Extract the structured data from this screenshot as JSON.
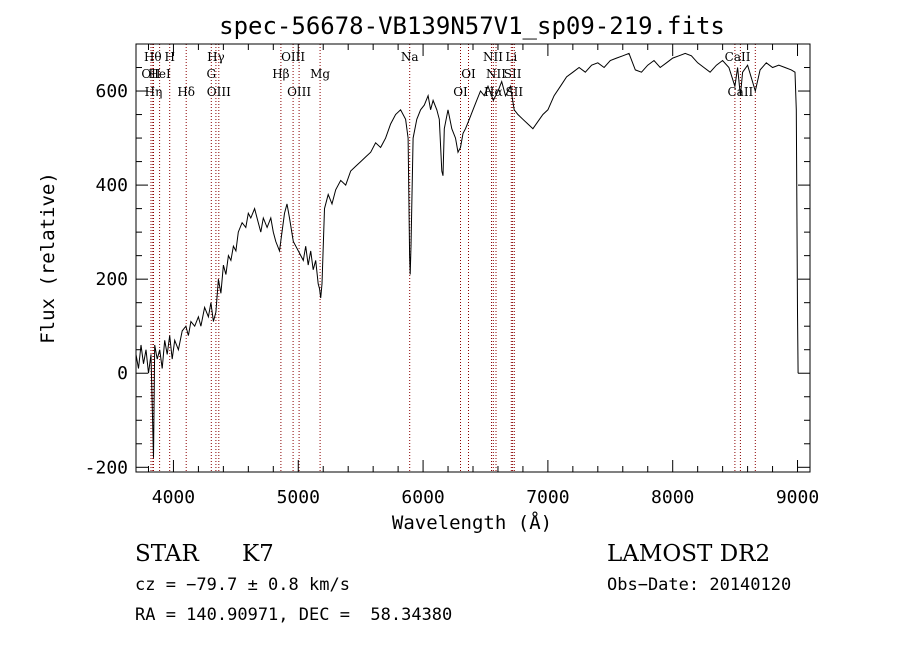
{
  "chart_data": {
    "type": "line",
    "title": "spec-56678-VB139N57V1_sp09-219.fits",
    "xlabel": "Wavelength (Å)",
    "ylabel": "Flux (relative)",
    "xlim": [
      3700,
      9100
    ],
    "ylim": [
      -210,
      700
    ],
    "x_ticks": [
      4000,
      5000,
      6000,
      7000,
      8000,
      9000
    ],
    "y_ticks": [
      -200,
      0,
      200,
      400,
      600
    ],
    "grid": false,
    "series": [
      {
        "points": [
          [
            3700,
            40
          ],
          [
            3720,
            10
          ],
          [
            3740,
            60
          ],
          [
            3760,
            20
          ],
          [
            3780,
            50
          ],
          [
            3800,
            0
          ],
          [
            3820,
            40
          ],
          [
            3840,
            -180
          ],
          [
            3850,
            60
          ],
          [
            3870,
            30
          ],
          [
            3890,
            50
          ],
          [
            3910,
            10
          ],
          [
            3930,
            70
          ],
          [
            3950,
            40
          ],
          [
            3970,
            80
          ],
          [
            3990,
            30
          ],
          [
            4010,
            70
          ],
          [
            4040,
            50
          ],
          [
            4070,
            90
          ],
          [
            4100,
            100
          ],
          [
            4120,
            80
          ],
          [
            4140,
            110
          ],
          [
            4170,
            100
          ],
          [
            4200,
            120
          ],
          [
            4220,
            100
          ],
          [
            4250,
            140
          ],
          [
            4280,
            120
          ],
          [
            4300,
            150
          ],
          [
            4320,
            110
          ],
          [
            4340,
            130
          ],
          [
            4360,
            200
          ],
          [
            4380,
            170
          ],
          [
            4400,
            230
          ],
          [
            4420,
            210
          ],
          [
            4440,
            250
          ],
          [
            4460,
            240
          ],
          [
            4480,
            270
          ],
          [
            4500,
            260
          ],
          [
            4520,
            300
          ],
          [
            4550,
            320
          ],
          [
            4580,
            310
          ],
          [
            4600,
            340
          ],
          [
            4620,
            330
          ],
          [
            4650,
            350
          ],
          [
            4680,
            320
          ],
          [
            4700,
            300
          ],
          [
            4720,
            330
          ],
          [
            4750,
            310
          ],
          [
            4780,
            330
          ],
          [
            4800,
            300
          ],
          [
            4820,
            280
          ],
          [
            4850,
            260
          ],
          [
            4870,
            300
          ],
          [
            4890,
            340
          ],
          [
            4910,
            360
          ],
          [
            4930,
            330
          ],
          [
            4960,
            280
          ],
          [
            4980,
            270
          ],
          [
            5000,
            260
          ],
          [
            5020,
            250
          ],
          [
            5040,
            240
          ],
          [
            5060,
            270
          ],
          [
            5080,
            230
          ],
          [
            5100,
            260
          ],
          [
            5120,
            220
          ],
          [
            5140,
            240
          ],
          [
            5160,
            190
          ],
          [
            5170,
            180
          ],
          [
            5180,
            160
          ],
          [
            5190,
            190
          ],
          [
            5210,
            350
          ],
          [
            5240,
            380
          ],
          [
            5270,
            360
          ],
          [
            5300,
            390
          ],
          [
            5340,
            410
          ],
          [
            5380,
            400
          ],
          [
            5420,
            430
          ],
          [
            5460,
            440
          ],
          [
            5500,
            450
          ],
          [
            5540,
            460
          ],
          [
            5580,
            470
          ],
          [
            5620,
            490
          ],
          [
            5660,
            480
          ],
          [
            5700,
            500
          ],
          [
            5740,
            530
          ],
          [
            5780,
            550
          ],
          [
            5820,
            560
          ],
          [
            5860,
            540
          ],
          [
            5880,
            500
          ],
          [
            5892,
            250
          ],
          [
            5897,
            210
          ],
          [
            5903,
            270
          ],
          [
            5920,
            500
          ],
          [
            5950,
            540
          ],
          [
            5980,
            560
          ],
          [
            6010,
            570
          ],
          [
            6040,
            590
          ],
          [
            6060,
            560
          ],
          [
            6080,
            580
          ],
          [
            6110,
            560
          ],
          [
            6130,
            540
          ],
          [
            6150,
            430
          ],
          [
            6160,
            420
          ],
          [
            6170,
            520
          ],
          [
            6200,
            560
          ],
          [
            6230,
            520
          ],
          [
            6260,
            500
          ],
          [
            6280,
            470
          ],
          [
            6300,
            480
          ],
          [
            6320,
            510
          ],
          [
            6340,
            520
          ],
          [
            6370,
            540
          ],
          [
            6400,
            560
          ],
          [
            6430,
            580
          ],
          [
            6460,
            600
          ],
          [
            6490,
            590
          ],
          [
            6520,
            610
          ],
          [
            6563,
            580
          ],
          [
            6600,
            600
          ],
          [
            6630,
            620
          ],
          [
            6660,
            590
          ],
          [
            6700,
            610
          ],
          [
            6730,
            560
          ],
          [
            6760,
            550
          ],
          [
            6800,
            540
          ],
          [
            6840,
            530
          ],
          [
            6880,
            520
          ],
          [
            6920,
            535
          ],
          [
            6960,
            550
          ],
          [
            7000,
            560
          ],
          [
            7050,
            590
          ],
          [
            7100,
            610
          ],
          [
            7150,
            630
          ],
          [
            7200,
            640
          ],
          [
            7250,
            650
          ],
          [
            7300,
            640
          ],
          [
            7350,
            655
          ],
          [
            7400,
            660
          ],
          [
            7450,
            650
          ],
          [
            7500,
            665
          ],
          [
            7550,
            670
          ],
          [
            7600,
            675
          ],
          [
            7650,
            680
          ],
          [
            7700,
            645
          ],
          [
            7750,
            640
          ],
          [
            7800,
            655
          ],
          [
            7850,
            665
          ],
          [
            7900,
            650
          ],
          [
            7950,
            660
          ],
          [
            8000,
            670
          ],
          [
            8050,
            675
          ],
          [
            8100,
            680
          ],
          [
            8150,
            675
          ],
          [
            8200,
            660
          ],
          [
            8250,
            650
          ],
          [
            8300,
            640
          ],
          [
            8350,
            655
          ],
          [
            8400,
            665
          ],
          [
            8450,
            650
          ],
          [
            8498,
            610
          ],
          [
            8520,
            650
          ],
          [
            8542,
            590
          ],
          [
            8560,
            640
          ],
          [
            8600,
            655
          ],
          [
            8662,
            600
          ],
          [
            8700,
            645
          ],
          [
            8750,
            660
          ],
          [
            8800,
            650
          ],
          [
            8850,
            655
          ],
          [
            8900,
            650
          ],
          [
            8950,
            645
          ],
          [
            8980,
            640
          ],
          [
            8990,
            560
          ],
          [
            9000,
            130
          ],
          [
            9005,
            0
          ]
        ]
      }
    ],
    "lines": [
      {
        "wavelength": 3835,
        "label": "Hθ"
      },
      {
        "wavelength": 3820,
        "label": "OII"
      },
      {
        "wavelength": 3840,
        "label": "Hη"
      },
      {
        "wavelength": 3889,
        "label": "HeI"
      },
      {
        "wavelength": 3970,
        "label": "H"
      },
      {
        "wavelength": 4102,
        "label": "Hδ"
      },
      {
        "wavelength": 4303,
        "label": "G"
      },
      {
        "wavelength": 4340,
        "label": "Hγ"
      },
      {
        "wavelength": 4363,
        "label": "OIII"
      },
      {
        "wavelength": 4861,
        "label": "Hβ"
      },
      {
        "wavelength": 4959,
        "label": "OIII"
      },
      {
        "wavelength": 5007,
        "label": "OIII"
      },
      {
        "wavelength": 5175,
        "label": "Mg"
      },
      {
        "wavelength": 5893,
        "label": "Na"
      },
      {
        "wavelength": 6300,
        "label": "OI"
      },
      {
        "wavelength": 6364,
        "label": "OI"
      },
      {
        "wavelength": 6548,
        "label": "NII"
      },
      {
        "wavelength": 6563,
        "label": "Hα"
      },
      {
        "wavelength": 6584,
        "label": "NII"
      },
      {
        "wavelength": 6707,
        "label": "Li"
      },
      {
        "wavelength": 6717,
        "label": "SII"
      },
      {
        "wavelength": 6731,
        "label": "SII"
      },
      {
        "wavelength": 8498,
        "label": "CaII"
      },
      {
        "wavelength": 8542,
        "label": "CaII"
      },
      {
        "wavelength": 8662,
        "label": "CaII"
      }
    ],
    "line_labels": [
      {
        "text": "Hθ",
        "wavelength": 3835,
        "row": 1
      },
      {
        "text": "H",
        "wavelength": 3970,
        "row": 1
      },
      {
        "text": "Hγ",
        "wavelength": 4340,
        "row": 1
      },
      {
        "text": "OIII",
        "wavelength": 4959,
        "row": 1
      },
      {
        "text": "Na",
        "wavelength": 5893,
        "row": 1
      },
      {
        "text": "NII",
        "wavelength": 6560,
        "row": 1
      },
      {
        "text": "Li",
        "wavelength": 6707,
        "row": 1
      },
      {
        "text": "CaII",
        "wavelength": 8520,
        "row": 1
      },
      {
        "text": "OII",
        "wavelength": 3820,
        "row": 2
      },
      {
        "text": "HeI",
        "wavelength": 3889,
        "row": 2
      },
      {
        "text": "G",
        "wavelength": 4303,
        "row": 2
      },
      {
        "text": "Hβ",
        "wavelength": 4861,
        "row": 2
      },
      {
        "text": "Mg",
        "wavelength": 5175,
        "row": 2
      },
      {
        "text": "OI",
        "wavelength": 6364,
        "row": 2
      },
      {
        "text": "NII",
        "wavelength": 6584,
        "row": 2
      },
      {
        "text": "SII",
        "wavelength": 6717,
        "row": 2
      },
      {
        "text": "Hη",
        "wavelength": 3840,
        "row": 3
      },
      {
        "text": "Hδ",
        "wavelength": 4102,
        "row": 3
      },
      {
        "text": "OIII",
        "wavelength": 4363,
        "row": 3
      },
      {
        "text": "OIII",
        "wavelength": 5007,
        "row": 3
      },
      {
        "text": "OI",
        "wavelength": 6300,
        "row": 3
      },
      {
        "text": "Hα",
        "wavelength": 6563,
        "row": 3
      },
      {
        "text": "SII",
        "wavelength": 6731,
        "row": 3
      },
      {
        "text": "CaII",
        "wavelength": 8542,
        "row": 3
      }
    ],
    "line_color": "#8b0000",
    "spectrum_color": "#000000"
  },
  "info": {
    "class": "STAR",
    "subclass": "K7",
    "survey": "LAMOST DR2",
    "cz": "cz = −79.7 ± 0.8 km/s",
    "obs_date": "Obs−Date: 20140120",
    "radec": "RA = 140.90971, DEC =  58.34380"
  }
}
